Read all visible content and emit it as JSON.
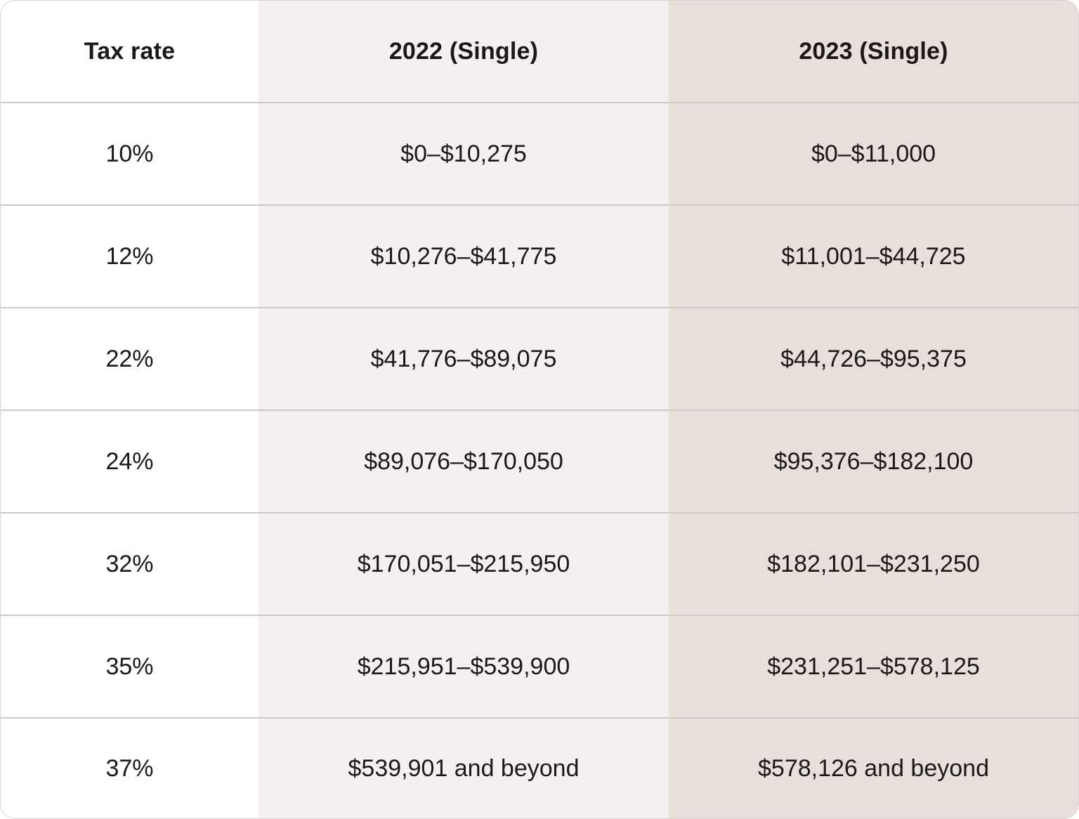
{
  "table": {
    "headers": [
      "Tax rate",
      "2022 (Single)",
      "2023 (Single)"
    ],
    "rows": [
      {
        "rate": "10%",
        "y2022": "$0–$10,275",
        "y2023": "$0–$11,000"
      },
      {
        "rate": "12%",
        "y2022": "$10,276–$41,775",
        "y2023": "$11,001–$44,725"
      },
      {
        "rate": "22%",
        "y2022": "$41,776–$89,075",
        "y2023": "$44,726–$95,375"
      },
      {
        "rate": "24%",
        "y2022": "$89,076–$170,050",
        "y2023": "$95,376–$182,100"
      },
      {
        "rate": "32%",
        "y2022": "$170,051–$215,950",
        "y2023": "$182,101–$231,250"
      },
      {
        "rate": "35%",
        "y2022": "$215,951–$539,900",
        "y2023": "$231,251–$578,125"
      },
      {
        "rate": "37%",
        "y2022": "$539,901 and beyond",
        "y2023": "$578,126 and beyond"
      }
    ]
  },
  "colors": {
    "col_rate_bg": "#ffffff",
    "col_2022_bg": "#f4eff0",
    "col_2023_bg": "#e8deda",
    "divider": "#cfcac8",
    "text": "#1c1818"
  }
}
